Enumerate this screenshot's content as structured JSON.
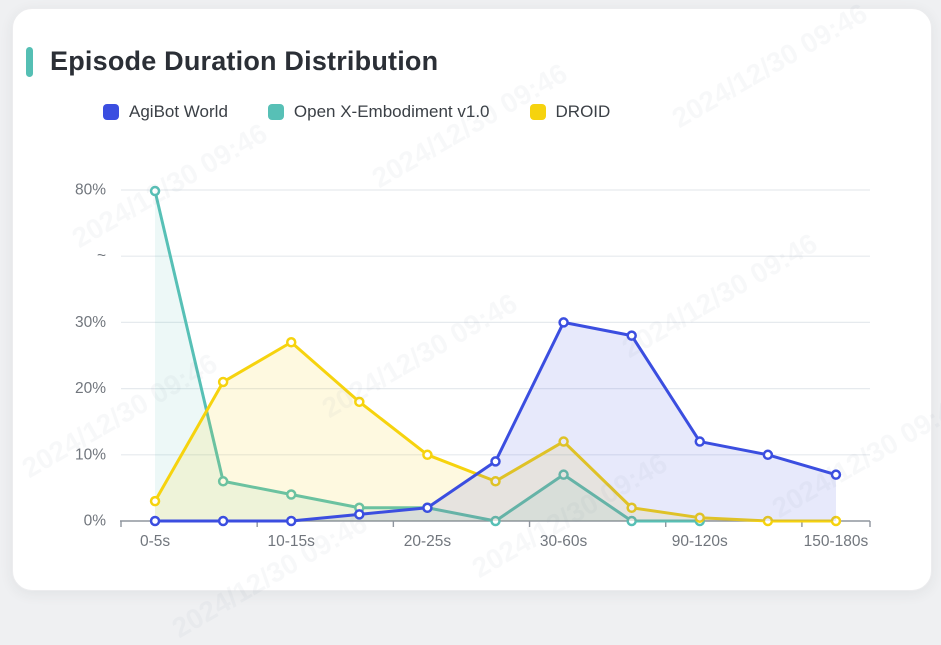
{
  "page": {
    "background": "#eff0f2",
    "card_background": "#ffffff",
    "accent_color": "#55bfb4"
  },
  "watermark": {
    "text": "2024/12/30 09:46"
  },
  "chart_data": {
    "type": "line",
    "title": "Episode Duration Distribution",
    "legend_position": "top",
    "grid": true,
    "x_tick_labels": [
      "0-5s",
      "",
      "10-15s",
      "",
      "20-25s",
      "",
      "30-60s",
      "",
      "90-120s",
      "",
      "150-180s"
    ],
    "y_tick_labels": [
      "0%",
      "10%",
      "20%",
      "30%",
      "~",
      "80%"
    ],
    "y_axis": {
      "unit": "%",
      "linear_range": [
        0,
        30
      ],
      "break_symbol": "~",
      "broken_axis_top_value": 80
    },
    "series": [
      {
        "name": "AgiBot World",
        "color": "#3b4ee0",
        "fill_opacity": 0.12,
        "values": [
          0,
          0,
          0,
          1,
          2,
          9,
          30,
          28,
          12,
          10,
          7
        ]
      },
      {
        "name": "Open X-Embodiment v1.0",
        "color": "#57c0b6",
        "fill_opacity": 0.11,
        "values": [
          79.6,
          6,
          4,
          2,
          2,
          0,
          7,
          0,
          0
        ]
      },
      {
        "name": "DROID",
        "color": "#f6d30e",
        "fill_opacity": 0.13,
        "values": [
          3,
          21,
          27,
          18,
          10,
          6,
          12,
          2,
          0.5,
          0,
          0
        ]
      }
    ]
  },
  "style": {
    "gridline_color": "#e6eaee",
    "axis_color": "#8f959e",
    "axis_label_color": "#71767d"
  }
}
